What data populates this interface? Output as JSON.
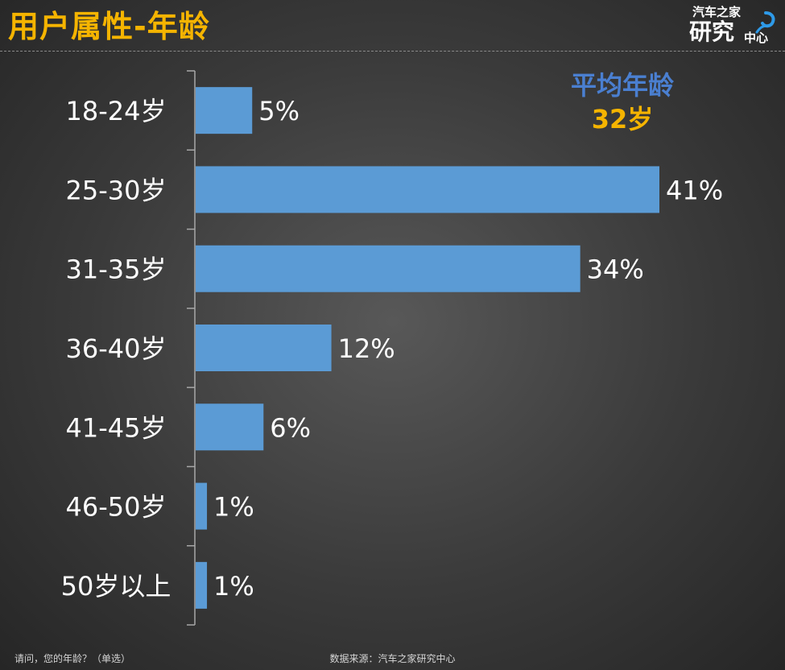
{
  "header": {
    "title": "用户属性-年龄"
  },
  "logo": {
    "top_text": "汽车之家",
    "big_text": "研究",
    "small_text": "中心"
  },
  "average": {
    "label": "平均年龄",
    "value": "32岁"
  },
  "footer": {
    "question": "请问，您的年龄？（单选）",
    "source": "数据来源：汽车之家研究中心"
  },
  "colors": {
    "bar": "#5b9bd5",
    "title": "#f5b400",
    "average_label": "#4a7fd0",
    "average_value": "#f5b400",
    "text": "#ffffff"
  },
  "chart_data": {
    "type": "bar",
    "orientation": "horizontal",
    "title": "",
    "xlabel": "",
    "ylabel": "",
    "categories": [
      "18-24岁",
      "25-30岁",
      "31-35岁",
      "36-40岁",
      "41-45岁",
      "46-50岁",
      "50岁以上"
    ],
    "values": [
      5,
      41,
      34,
      12,
      6,
      1,
      1
    ],
    "value_labels": [
      "5%",
      "41%",
      "34%",
      "12%",
      "6%",
      "1%",
      "1%"
    ],
    "unit": "%",
    "xlim": [
      0,
      41
    ],
    "grid": false,
    "legend": "none"
  }
}
